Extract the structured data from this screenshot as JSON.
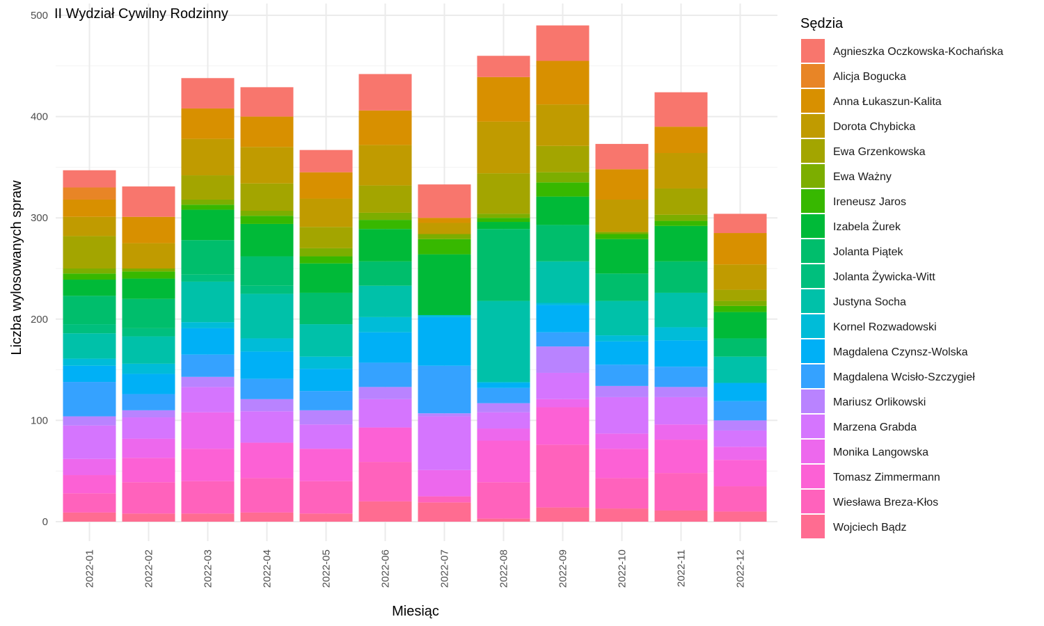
{
  "chart_data": {
    "type": "bar",
    "stacked": true,
    "title": "II Wydział Cywilny Rodzinny",
    "xlabel": "Miesiąc",
    "ylabel": "Liczba wylosowanych spraw",
    "ylim": [
      0,
      500
    ],
    "yticks": [
      0,
      100,
      200,
      300,
      400,
      500
    ],
    "grid": true,
    "legend_title": "Sędzia",
    "legend_position": "right",
    "categories": [
      "2022-01",
      "2022-02",
      "2022-03",
      "2022-04",
      "2022-05",
      "2022-06",
      "2022-07",
      "2022-08",
      "2022-09",
      "2022-10",
      "2022-11",
      "2022-12"
    ],
    "series": [
      {
        "name": "Wojciech Bądz",
        "color": "#FF6C91",
        "values": [
          9,
          8,
          8,
          9,
          8,
          20,
          19,
          3,
          14,
          13,
          11,
          10
        ]
      },
      {
        "name": "Wiesława Breza-Kłos",
        "color": "#FF62BC",
        "values": [
          19,
          31,
          32,
          34,
          32,
          39,
          6,
          36,
          62,
          30,
          37,
          25
        ]
      },
      {
        "name": "Tomasz Zimmermann",
        "color": "#FC61D5",
        "values": [
          18,
          24,
          32,
          35,
          32,
          34,
          0,
          41,
          37,
          29,
          33,
          26
        ]
      },
      {
        "name": "Monika Langowska",
        "color": "#ED68ED",
        "values": [
          16,
          19,
          36,
          0,
          0,
          0,
          26,
          12,
          8,
          15,
          15,
          13
        ]
      },
      {
        "name": "Marzena Grabda",
        "color": "#D575FE",
        "values": [
          33,
          21,
          25,
          31,
          24,
          28,
          53,
          16,
          26,
          36,
          27,
          16
        ]
      },
      {
        "name": "Mariusz Orlikowski",
        "color": "#B983FF",
        "values": [
          9,
          7,
          10,
          12,
          14,
          12,
          3,
          9,
          26,
          11,
          10,
          10
        ]
      },
      {
        "name": "Magdalena Wcisło-Szczygieł",
        "color": "#35A2FF",
        "values": [
          34,
          16,
          22,
          20,
          19,
          24,
          47,
          15,
          14,
          21,
          20,
          19
        ]
      },
      {
        "name": "Magdalena Czynsz-Wolska",
        "color": "#00B0F6",
        "values": [
          16,
          20,
          26,
          27,
          22,
          30,
          48,
          5,
          27,
          23,
          26,
          18
        ]
      },
      {
        "name": "Kornel Rozwadowski",
        "color": "#00BCD8",
        "values": [
          7,
          10,
          6,
          13,
          12,
          15,
          2,
          1,
          2,
          6,
          13,
          0
        ]
      },
      {
        "name": "Justyna Socha",
        "color": "#00C1A9",
        "values": [
          25,
          27,
          40,
          44,
          32,
          31,
          0,
          80,
          41,
          34,
          34,
          26
        ]
      },
      {
        "name": "Jolanta Żywicka-Witt",
        "color": "#00BF7D",
        "values": [
          9,
          8,
          7,
          8,
          0,
          0,
          0,
          0,
          0,
          0,
          0,
          0
        ]
      },
      {
        "name": "Jolanta Piątek",
        "color": "#00BE6C",
        "values": [
          28,
          29,
          34,
          29,
          31,
          24,
          0,
          71,
          36,
          27,
          31,
          18
        ]
      },
      {
        "name": "Izabela Żurek",
        "color": "#00BA38",
        "values": [
          16,
          20,
          30,
          32,
          29,
          32,
          60,
          7,
          28,
          34,
          35,
          26
        ]
      },
      {
        "name": "Ireneusz Jaros",
        "color": "#37B800",
        "values": [
          6,
          7,
          5,
          8,
          7,
          9,
          15,
          4,
          14,
          5,
          5,
          6
        ]
      },
      {
        "name": "Ewa Ważny",
        "color": "#7CAE00",
        "values": [
          5,
          3,
          5,
          5,
          8,
          7,
          5,
          4,
          10,
          2,
          6,
          5
        ]
      },
      {
        "name": "Ewa Grzenkowska",
        "color": "#A3A500",
        "values": [
          32,
          0,
          24,
          27,
          21,
          27,
          0,
          40,
          26,
          0,
          26,
          11
        ]
      },
      {
        "name": "Dorota Chybicka",
        "color": "#C09B00",
        "values": [
          19,
          25,
          36,
          36,
          28,
          40,
          11,
          51,
          41,
          32,
          35,
          25
        ]
      },
      {
        "name": "Anna Łukaszun-Kalita",
        "color": "#D89000",
        "values": [
          17,
          26,
          30,
          30,
          26,
          34,
          5,
          44,
          43,
          30,
          26,
          31
        ]
      },
      {
        "name": "Alicja Bogucka",
        "color": "#E88526",
        "values": [
          12,
          0,
          0,
          0,
          0,
          0,
          0,
          0,
          0,
          0,
          0,
          0
        ]
      },
      {
        "name": "Agnieszka Oczkowska-Kochańska",
        "color": "#F8766D",
        "values": [
          17,
          30,
          30,
          29,
          22,
          36,
          33,
          21,
          35,
          25,
          34,
          19
        ]
      }
    ]
  }
}
